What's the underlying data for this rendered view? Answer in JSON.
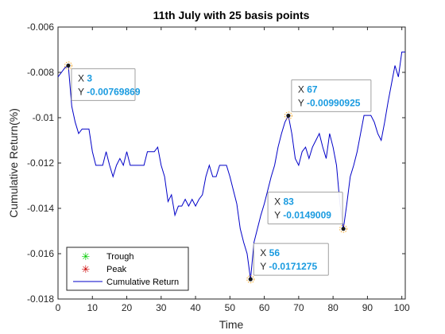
{
  "chart_data": {
    "type": "line",
    "title": "11th July with 25 basis points",
    "xlabel": "Time",
    "ylabel": "Cumulative Return(%)",
    "xlim": [
      0,
      101
    ],
    "ylim": [
      -0.018,
      -0.006
    ],
    "xticks": [
      "0",
      "10",
      "20",
      "30",
      "40",
      "50",
      "60",
      "70",
      "80",
      "90",
      "100"
    ],
    "yticks": [
      "-0.018",
      "-0.016",
      "-0.014",
      "-0.012",
      "-0.01",
      "-0.008",
      "-0.006"
    ],
    "legend": {
      "placement": "bottom-left",
      "entries": [
        {
          "label": "Trough",
          "marker": "*",
          "color": "#00cc00"
        },
        {
          "label": "Peak",
          "marker": "*",
          "color": "#cc0000"
        },
        {
          "label": "Cumulative Return",
          "marker": "line",
          "color": "#0000c8"
        }
      ]
    },
    "series": [
      {
        "name": "Cumulative Return",
        "color": "#0000c8",
        "x": [
          0,
          1,
          2,
          3,
          4,
          5,
          6,
          7,
          8,
          9,
          10,
          11,
          12,
          13,
          14,
          15,
          16,
          17,
          18,
          19,
          20,
          21,
          22,
          23,
          24,
          25,
          26,
          27,
          28,
          29,
          30,
          31,
          32,
          33,
          34,
          35,
          36,
          37,
          38,
          39,
          40,
          41,
          42,
          43,
          44,
          45,
          46,
          47,
          48,
          49,
          50,
          51,
          52,
          53,
          54,
          55,
          56,
          57,
          58,
          59,
          60,
          61,
          62,
          63,
          64,
          65,
          66,
          67,
          68,
          69,
          70,
          71,
          72,
          73,
          74,
          75,
          76,
          77,
          78,
          79,
          80,
          81,
          82,
          83,
          84,
          85,
          86,
          87,
          88,
          89,
          90,
          91,
          92,
          93,
          94,
          95,
          96,
          97,
          98,
          99,
          100,
          101
        ],
        "y": [
          -0.0082,
          -0.008,
          -0.0078,
          -0.00769869,
          -0.0095,
          -0.0102,
          -0.0107,
          -0.0105,
          -0.0105,
          -0.0105,
          -0.0115,
          -0.0121,
          -0.0121,
          -0.0121,
          -0.0115,
          -0.0121,
          -0.0126,
          -0.0121,
          -0.0118,
          -0.0121,
          -0.0115,
          -0.0121,
          -0.0121,
          -0.0121,
          -0.0121,
          -0.0121,
          -0.0115,
          -0.0115,
          -0.0115,
          -0.0113,
          -0.0121,
          -0.0126,
          -0.0137,
          -0.0134,
          -0.0143,
          -0.0139,
          -0.0139,
          -0.0136,
          -0.0139,
          -0.0136,
          -0.0139,
          -0.0136,
          -0.0134,
          -0.0126,
          -0.0121,
          -0.0126,
          -0.0126,
          -0.0121,
          -0.0121,
          -0.0121,
          -0.0126,
          -0.0132,
          -0.0138,
          -0.0149,
          -0.0155,
          -0.016,
          -0.0171275,
          -0.0155,
          -0.0149,
          -0.0143,
          -0.0138,
          -0.0132,
          -0.0126,
          -0.0121,
          -0.0113,
          -0.0107,
          -0.0102,
          -0.00990925,
          -0.0107,
          -0.0118,
          -0.0121,
          -0.0115,
          -0.0113,
          -0.0118,
          -0.0113,
          -0.011,
          -0.0107,
          -0.0113,
          -0.0118,
          -0.0107,
          -0.0113,
          -0.0121,
          -0.0138,
          -0.0149009,
          -0.0138,
          -0.0126,
          -0.0121,
          -0.0115,
          -0.0107,
          -0.0099,
          -0.0099,
          -0.0099,
          -0.0102,
          -0.0107,
          -0.011,
          -0.0102,
          -0.0093,
          -0.0085,
          -0.0077,
          -0.0082,
          -0.0071,
          -0.0071
        ]
      }
    ],
    "annotations": [
      {
        "x": 3,
        "y": -0.00769869,
        "x_text": "3",
        "y_text": "-0.00769869"
      },
      {
        "x": 67,
        "y": -0.00990925,
        "x_text": "67",
        "y_text": "-0.00990925"
      },
      {
        "x": 83,
        "y": -0.0149009,
        "x_text": "83",
        "y_text": "-0.0149009"
      },
      {
        "x": 56,
        "y": -0.0171275,
        "x_text": "56",
        "y_text": "-0.0171275"
      }
    ],
    "grid": false
  }
}
